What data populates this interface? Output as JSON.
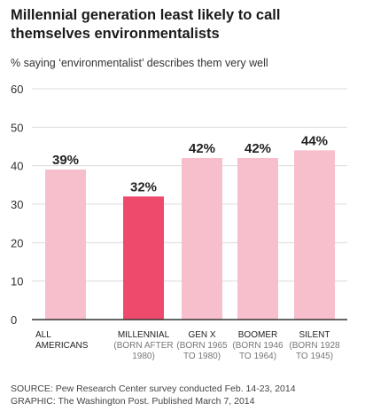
{
  "header": {
    "title": "Millennial generation least likely to call themselves environmentalists",
    "subtitle": "% saying ‘environmentalist’ describes them very well"
  },
  "footer": {
    "source": "SOURCE: Pew Research Center survey conducted Feb. 14-23, 2014",
    "credit": "GRAPHIC: The Washington Post. Published March 7, 2014"
  },
  "chart_data": {
    "type": "bar",
    "title": "Millennial generation least likely to call themselves environmentalists",
    "subtitle": "% saying ‘environmentalist’ describes them very well",
    "xlabel": "",
    "ylabel": "",
    "ylim": [
      0,
      60
    ],
    "yticks": [
      0,
      10,
      20,
      30,
      40,
      50,
      60
    ],
    "grid": true,
    "legend": "none",
    "categories": [
      {
        "label": "ALL AMERICANS",
        "line1": "ALL",
        "line2": "AMERICANS",
        "sub1": "",
        "sub2": ""
      },
      {
        "label": "MILLENNIAL (BORN AFTER 1980)",
        "line1": "MILLENNIAL",
        "line2": "",
        "sub1": "(BORN AFTER",
        "sub2": "1980)"
      },
      {
        "label": "GEN X (BORN 1965 TO 1980)",
        "line1": "GEN X",
        "line2": "",
        "sub1": "(BORN 1965",
        "sub2": "TO 1980)"
      },
      {
        "label": "BOOMER (BORN 1946 TO 1964)",
        "line1": "BOOMER",
        "line2": "",
        "sub1": "(BORN 1946",
        "sub2": "TO 1964)"
      },
      {
        "label": "SILENT (BORN 1928 TO 1945)",
        "line1": "SILENT",
        "line2": "",
        "sub1": "(BORN 1928",
        "sub2": "TO 1945)"
      }
    ],
    "values": [
      39,
      32,
      42,
      42,
      44
    ],
    "value_labels": [
      "39%",
      "32%",
      "42%",
      "42%",
      "44%"
    ],
    "colors": [
      "#f7bfcc",
      "#ee4a6c",
      "#f7bfcc",
      "#f7bfcc",
      "#f7bfcc"
    ],
    "grid_color": "#dcdcdc",
    "axis_color": "#333333"
  }
}
